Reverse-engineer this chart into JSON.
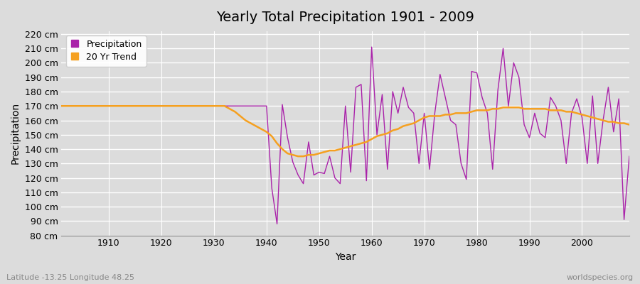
{
  "title": "Yearly Total Precipitation 1901 - 2009",
  "xlabel": "Year",
  "ylabel": "Precipitation",
  "subtitle": "Latitude -13.25 Longitude 48.25",
  "watermark": "worldspecies.org",
  "years": [
    1901,
    1902,
    1903,
    1904,
    1905,
    1906,
    1907,
    1908,
    1909,
    1910,
    1911,
    1912,
    1913,
    1914,
    1915,
    1916,
    1917,
    1918,
    1919,
    1920,
    1921,
    1922,
    1923,
    1924,
    1925,
    1926,
    1927,
    1928,
    1929,
    1930,
    1931,
    1932,
    1933,
    1934,
    1935,
    1936,
    1937,
    1938,
    1939,
    1940,
    1941,
    1942,
    1943,
    1944,
    1945,
    1946,
    1947,
    1948,
    1949,
    1950,
    1951,
    1952,
    1953,
    1954,
    1955,
    1956,
    1957,
    1958,
    1959,
    1960,
    1961,
    1962,
    1963,
    1964,
    1965,
    1966,
    1967,
    1968,
    1969,
    1970,
    1971,
    1972,
    1973,
    1974,
    1975,
    1976,
    1977,
    1978,
    1979,
    1980,
    1981,
    1982,
    1983,
    1984,
    1985,
    1986,
    1987,
    1988,
    1989,
    1990,
    1991,
    1992,
    1993,
    1994,
    1995,
    1996,
    1997,
    1998,
    1999,
    2000,
    2001,
    2002,
    2003,
    2004,
    2005,
    2006,
    2007,
    2008,
    2009
  ],
  "precipitation": [
    170,
    170,
    170,
    170,
    170,
    170,
    170,
    170,
    170,
    170,
    170,
    170,
    170,
    170,
    170,
    170,
    170,
    170,
    170,
    170,
    170,
    170,
    170,
    170,
    170,
    170,
    170,
    170,
    170,
    170,
    170,
    170,
    170,
    170,
    170,
    170,
    170,
    170,
    170,
    170,
    113,
    88,
    171,
    148,
    131,
    122,
    116,
    145,
    122,
    124,
    123,
    135,
    120,
    116,
    170,
    124,
    183,
    185,
    118,
    211,
    150,
    178,
    126,
    180,
    165,
    183,
    169,
    165,
    130,
    165,
    126,
    165,
    192,
    176,
    160,
    157,
    130,
    119,
    194,
    193,
    176,
    165,
    126,
    181,
    210,
    170,
    200,
    190,
    157,
    148,
    165,
    151,
    148,
    176,
    170,
    160,
    130,
    165,
    175,
    162,
    130,
    177,
    130,
    160,
    183,
    152,
    175,
    91,
    135
  ],
  "trend": [
    170,
    170,
    170,
    170,
    170,
    170,
    170,
    170,
    170,
    170,
    170,
    170,
    170,
    170,
    170,
    170,
    170,
    170,
    170,
    170,
    170,
    170,
    170,
    170,
    170,
    170,
    170,
    170,
    170,
    170,
    170,
    170,
    168,
    166,
    163,
    160,
    158,
    156,
    154,
    152,
    149,
    144,
    140,
    137,
    136,
    135,
    135,
    136,
    136,
    137,
    138,
    139,
    139,
    140,
    141,
    142,
    143,
    144,
    145,
    147,
    149,
    150,
    151,
    153,
    154,
    156,
    157,
    158,
    160,
    162,
    163,
    163,
    163,
    164,
    164,
    165,
    165,
    165,
    166,
    167,
    167,
    167,
    168,
    168,
    169,
    169,
    169,
    169,
    168,
    168,
    168,
    168,
    168,
    167,
    167,
    167,
    166,
    166,
    165,
    164,
    163,
    162,
    161,
    160,
    159,
    159,
    158,
    158,
    157
  ],
  "precip_color": "#aa22aa",
  "trend_color": "#f5a020",
  "bg_color": "#dcdcdc",
  "grid_color": "#ffffff",
  "ylim": [
    80,
    222
  ],
  "yticks": [
    80,
    90,
    100,
    110,
    120,
    130,
    140,
    150,
    160,
    170,
    180,
    190,
    200,
    210,
    220
  ],
  "ytick_labels": [
    "80 cm",
    "90 cm",
    "100 cm",
    "110 cm",
    "120 cm",
    "130 cm",
    "140 cm",
    "150 cm",
    "160 cm",
    "170 cm",
    "180 cm",
    "190 cm",
    "200 cm",
    "210 cm",
    "220 cm"
  ],
  "xticks": [
    1910,
    1920,
    1930,
    1940,
    1950,
    1960,
    1970,
    1980,
    1990,
    2000
  ],
  "legend_items": [
    "Precipitation",
    "20 Yr Trend"
  ],
  "title_fontsize": 14,
  "axis_label_fontsize": 10,
  "tick_fontsize": 9
}
